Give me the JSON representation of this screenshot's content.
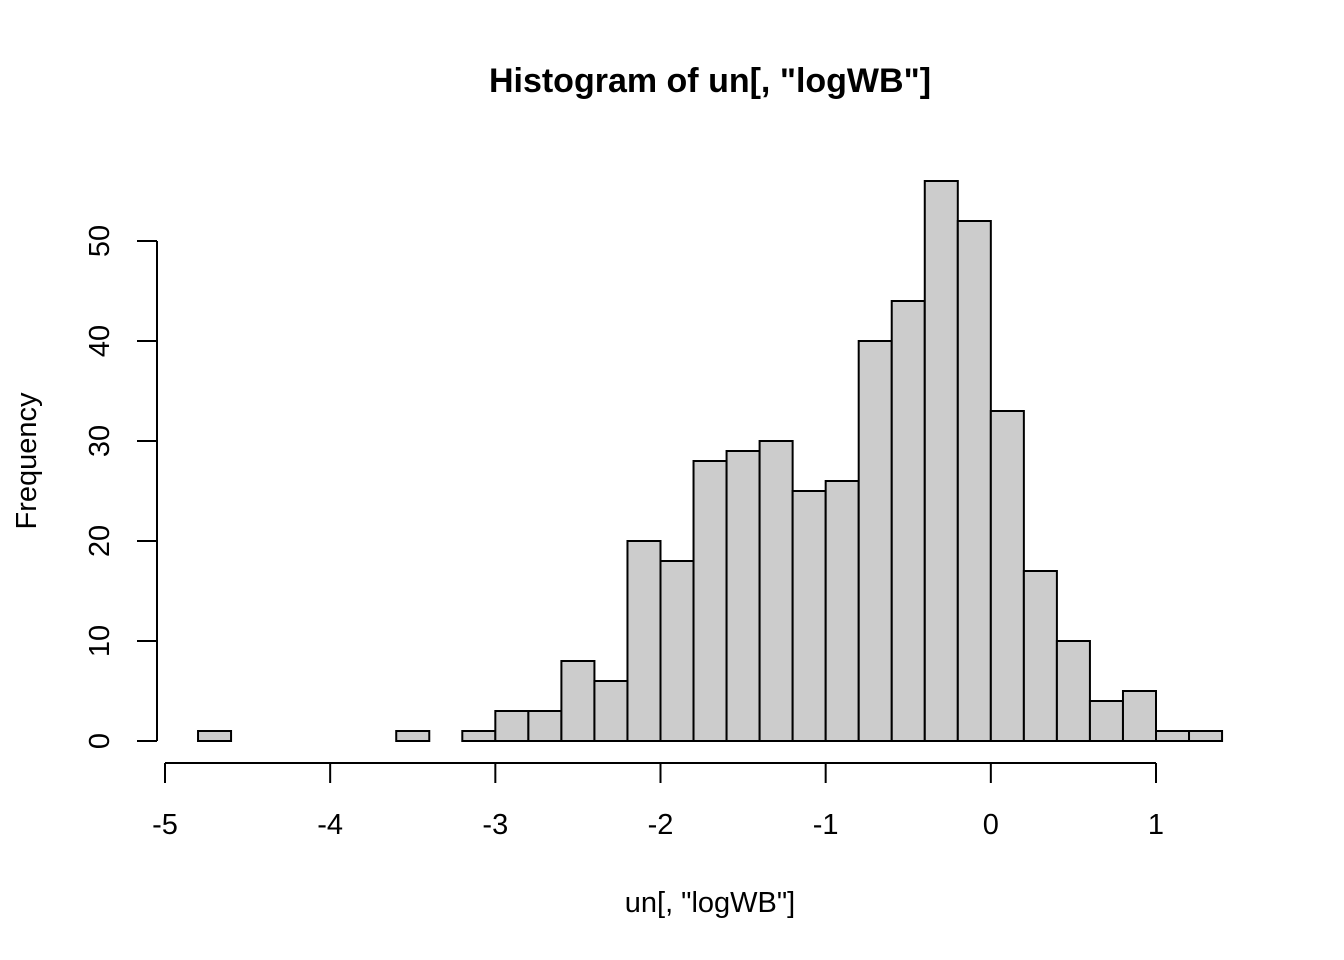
{
  "chart_data": {
    "type": "bar",
    "subtype": "histogram",
    "title": "Histogram of un[, \"logWB\"]",
    "xlabel": "un[, \"logWB\"]",
    "ylabel": "Frequency",
    "bin_width": 0.2,
    "bins": [
      [
        -4.8,
        -4.6
      ],
      [
        -4.6,
        -4.4
      ],
      [
        -4.4,
        -4.2
      ],
      [
        -4.2,
        -4.0
      ],
      [
        -4.0,
        -3.8
      ],
      [
        -3.8,
        -3.6
      ],
      [
        -3.6,
        -3.4
      ],
      [
        -3.4,
        -3.2
      ],
      [
        -3.2,
        -3.0
      ],
      [
        -3.0,
        -2.8
      ],
      [
        -2.8,
        -2.6
      ],
      [
        -2.6,
        -2.4
      ],
      [
        -2.4,
        -2.2
      ],
      [
        -2.2,
        -2.0
      ],
      [
        -2.0,
        -1.8
      ],
      [
        -1.8,
        -1.6
      ],
      [
        -1.6,
        -1.4
      ],
      [
        -1.4,
        -1.2
      ],
      [
        -1.2,
        -1.0
      ],
      [
        -1.0,
        -0.8
      ],
      [
        -0.8,
        -0.6
      ],
      [
        -0.6,
        -0.4
      ],
      [
        -0.4,
        -0.2
      ],
      [
        -0.2,
        0.0
      ],
      [
        0.0,
        0.2
      ],
      [
        0.2,
        0.4
      ],
      [
        0.4,
        0.6
      ],
      [
        0.6,
        0.8
      ],
      [
        0.8,
        1.0
      ],
      [
        1.0,
        1.2
      ],
      [
        1.2,
        1.4
      ]
    ],
    "values": [
      1,
      0,
      0,
      0,
      0,
      0,
      1,
      0,
      1,
      3,
      3,
      8,
      6,
      20,
      18,
      28,
      29,
      30,
      25,
      26,
      40,
      44,
      56,
      52,
      33,
      17,
      10,
      4,
      5,
      1,
      1
    ],
    "xlim": [
      -5,
      1.4
    ],
    "ylim": [
      0,
      56
    ],
    "x_ticks": [
      -5,
      -4,
      -3,
      -2,
      -1,
      0,
      1
    ],
    "x_tick_labels": [
      "-5",
      "-4",
      "-3",
      "-2",
      "-1",
      "0",
      "1"
    ],
    "y_ticks": [
      0,
      10,
      20,
      30,
      40,
      50
    ],
    "y_tick_labels": [
      "0",
      "10",
      "20",
      "30",
      "40",
      "50"
    ],
    "grid": false,
    "legend": "none",
    "bar_fill": "#cccccc",
    "bar_stroke": "#000000"
  }
}
